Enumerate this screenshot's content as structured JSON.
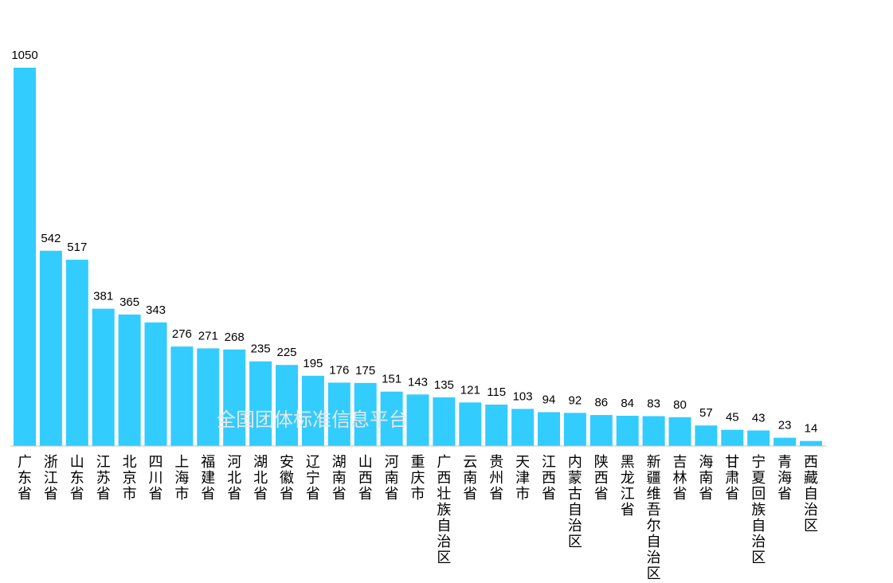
{
  "watermark": "全国团体标准信息平台",
  "colors": {
    "bar": "#33ccff",
    "axis": "#bfbfbf",
    "text": "#000000",
    "watermark": "#e6e6e6"
  },
  "chart_data": {
    "type": "bar",
    "title": "",
    "xlabel": "",
    "ylabel": "",
    "ylim": [
      0,
      1050
    ],
    "grid": false,
    "legend": "none",
    "categories": [
      "广东省",
      "浙江省",
      "山东省",
      "江苏省",
      "北京市",
      "四川省",
      "上海市",
      "福建省",
      "河北省",
      "湖北省",
      "安徽省",
      "辽宁省",
      "湖南省",
      "山西省",
      "河南省",
      "重庆市",
      "广西壮族自治区",
      "云南省",
      "贵州省",
      "天津市",
      "江西省",
      "内蒙古自治区",
      "陕西省",
      "黑龙江省",
      "新疆维吾尔自治区",
      "吉林省",
      "海南省",
      "甘肃省",
      "宁夏回族自治区",
      "青海省",
      "西藏自治区"
    ],
    "values": [
      1050,
      542,
      517,
      381,
      365,
      343,
      276,
      271,
      268,
      235,
      225,
      195,
      176,
      175,
      151,
      143,
      135,
      121,
      115,
      103,
      94,
      92,
      86,
      84,
      83,
      80,
      57,
      45,
      43,
      23,
      14
    ]
  }
}
